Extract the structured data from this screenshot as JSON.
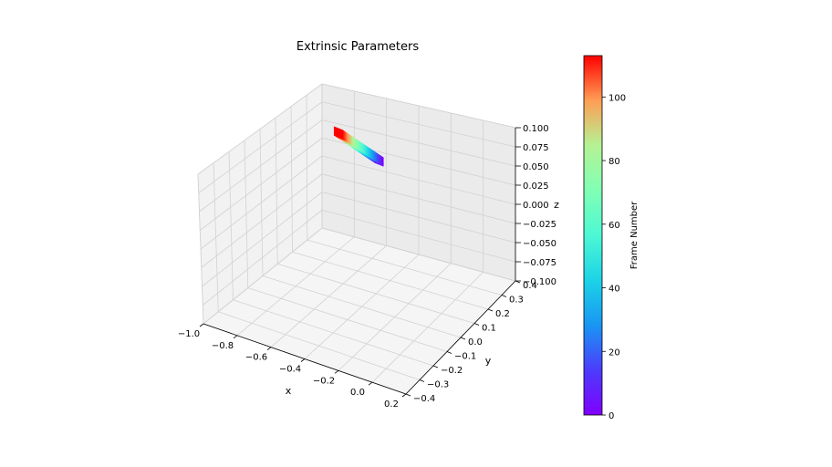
{
  "chart_data": {
    "type": "scatter",
    "title": "Extrinsic Parameters",
    "xlabel": "x",
    "ylabel": "y",
    "zlabel": "z",
    "xlim": [
      -1.0,
      0.2
    ],
    "ylim": [
      -0.4,
      0.4
    ],
    "zlim": [
      -0.1,
      0.1
    ],
    "x_ticks": [
      "−1.0",
      "−0.8",
      "−0.6",
      "−0.4",
      "−0.2",
      "0.0",
      "0.2"
    ],
    "y_ticks": [
      "−0.4",
      "−0.3",
      "−0.2",
      "−0.1",
      "0.0",
      "0.1",
      "0.2",
      "0.3",
      "0.4"
    ],
    "z_ticks": [
      "−0.100",
      "−0.075",
      "−0.050",
      "−0.025",
      "0.000",
      "0.025",
      "0.050",
      "0.075",
      "0.100"
    ],
    "colorbar": {
      "label": "Frame Number",
      "colormap": "rainbow",
      "range": [
        0,
        113
      ],
      "ticks": [
        "0",
        "20",
        "40",
        "60",
        "80",
        "100"
      ],
      "tick_values": [
        0,
        20,
        40,
        60,
        80,
        100
      ]
    },
    "series": [
      {
        "description_frames": [
          0,
          113
        ],
        "frames_start": 0,
        "frames_end": 113,
        "start": {
          "x": -0.61,
          "y": 0.36,
          "z": 0.02
        },
        "end": {
          "x": -0.7,
          "y": 0.18,
          "z": 0.08
        }
      }
    ],
    "grid": true
  }
}
